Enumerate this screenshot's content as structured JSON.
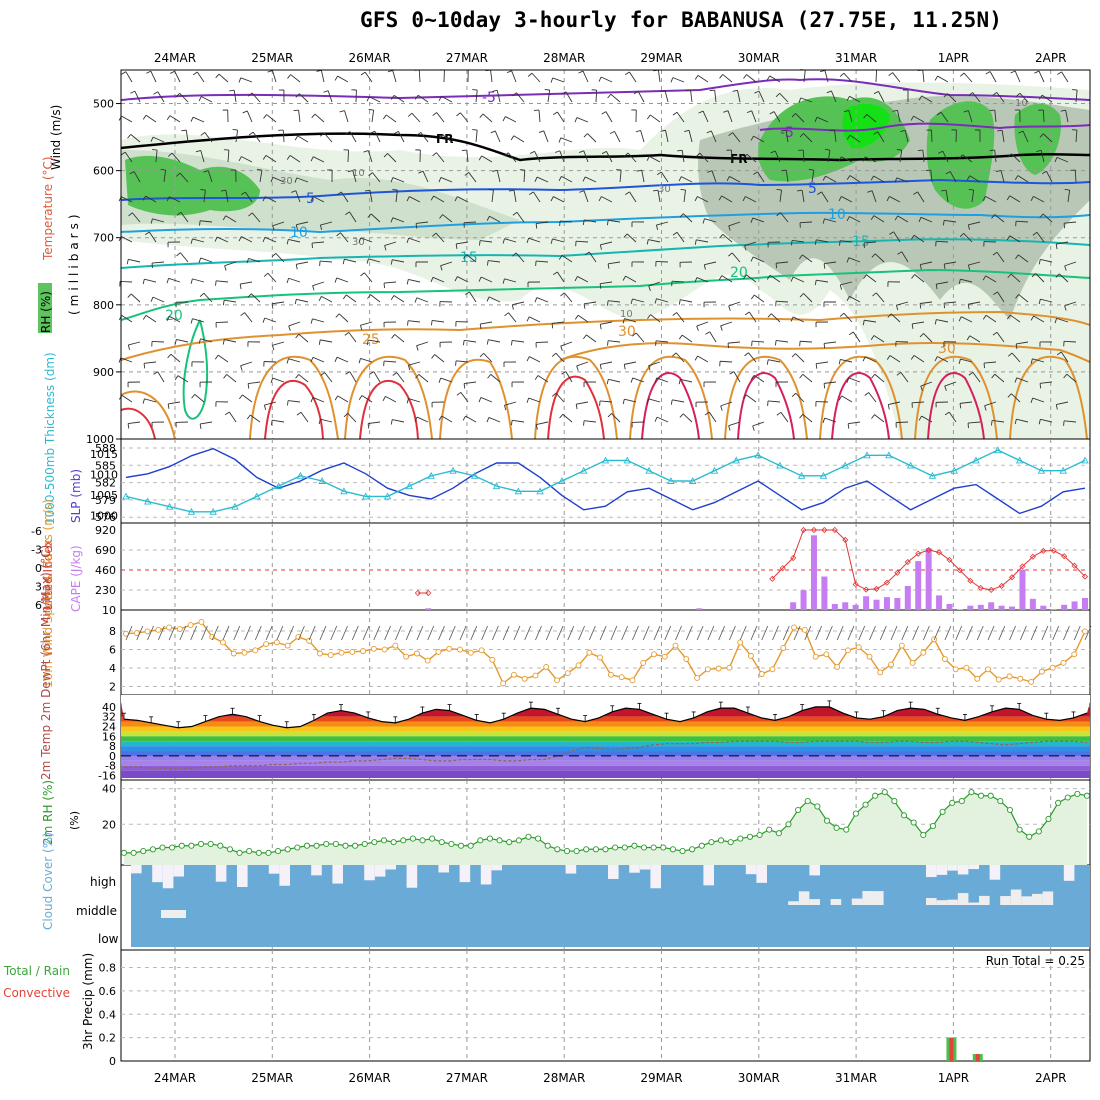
{
  "title": "GFS 0~10day 3-hourly for BABANUSA (27.75E, 11.25N)",
  "dates": [
    "24MAR",
    "25MAR",
    "26MAR",
    "27MAR",
    "28MAR",
    "29MAR",
    "30MAR",
    "31MAR",
    "1APR",
    "2APR"
  ],
  "colors": {
    "rh_green": "#3fbf3f",
    "rh_dark": "#9fa99f",
    "rh_light": "#dcecd9",
    "temp_purple": "#7b2cb8",
    "temp_blue": "#1f55d8",
    "temp_sky": "#1f9fe0",
    "temp_teal": "#18b5b0",
    "temp_green": "#18c27a",
    "temp_orange": "#e0912f",
    "temp_red": "#e0303c",
    "slp": "#1f3fcf",
    "thick": "#2bbbd0",
    "cape": "#c77df2",
    "lifted": "#e03535",
    "wind10": "#e59a2f",
    "rh2m": "#2a9a2a",
    "cloud": "#6aaad6",
    "precip_total": "#4cbf4c",
    "precip_conv": "#e0443a"
  },
  "chart_data": [
    {
      "panel": "upper-air",
      "type": "contour",
      "ylabel_wind": "Wind (m/s)",
      "ylabel_temp": "Temperature (°C)",
      "ylabel_rh": "RH (%)",
      "ylabel_pres": "(millibars)",
      "yticks": [
        "500",
        "600",
        "700",
        "800",
        "900",
        "1000"
      ],
      "ylim": [
        1000,
        450
      ],
      "isotherms": [
        {
          "label": "-5",
          "level": 492,
          "color": "purple"
        },
        {
          "label": "-5",
          "level": 550,
          "color": "purple"
        },
        {
          "label": "FR",
          "level": 575,
          "color": "black"
        },
        {
          "label": "5",
          "level": 625,
          "color": "blue"
        },
        {
          "label": "10",
          "level": 675,
          "color": "sky"
        },
        {
          "label": "15",
          "level": 730,
          "color": "teal"
        },
        {
          "label": "20",
          "level": 800,
          "color": "green"
        },
        {
          "label": "25",
          "level": 850,
          "color": "orange"
        },
        {
          "label": "30",
          "level": 860,
          "color": "orange"
        }
      ],
      "rh_labels": [
        "30",
        "10",
        "30",
        "30",
        "10",
        "10"
      ]
    },
    {
      "panel": "slp-thickness",
      "type": "line",
      "ylabel_left": "1000-500mb Thickness (dm)",
      "ylabel_right": "SLP (mb)",
      "yticks_left": [
        "588",
        "585",
        "582",
        "579",
        "576"
      ],
      "yticks_right": [
        "1015",
        "1010",
        "1005",
        "1000"
      ],
      "series": [
        {
          "name": "SLP (mb)",
          "values": [
            1009,
            1010,
            1012,
            1015,
            1017,
            1014,
            1009,
            1006,
            1008,
            1011,
            1013,
            1010,
            1006,
            1004,
            1003,
            1006,
            1010,
            1013,
            1013,
            1009,
            1004,
            1000,
            1001,
            1005,
            1006,
            1003,
            1000,
            1002,
            1005,
            1008,
            1004,
            1000,
            1002,
            1006,
            1008,
            1004,
            1000,
            1003,
            1006,
            1007,
            1003,
            999,
            1001,
            1005,
            1006
          ]
        },
        {
          "name": "Thickness (dm)",
          "values": [
            579,
            578,
            577,
            576,
            576,
            577,
            579,
            581,
            583,
            582,
            580,
            579,
            579,
            581,
            583,
            584,
            583,
            581,
            580,
            580,
            582,
            584,
            586,
            586,
            584,
            582,
            582,
            584,
            586,
            587,
            585,
            583,
            583,
            585,
            587,
            587,
            585,
            583,
            584,
            586,
            588,
            586,
            584,
            584,
            586
          ]
        }
      ]
    },
    {
      "panel": "cape-lifted",
      "type": "bar",
      "ylabel_left": "Lifted Index",
      "ylabel_right": "CAPE (J/kg)",
      "yticks_left": [
        "-6",
        "-3",
        "0",
        "3",
        "6"
      ],
      "yticks_right": [
        "920",
        "690",
        "460",
        "230",
        "10"
      ],
      "cape": [
        0,
        0,
        0,
        0,
        0,
        0,
        0,
        0,
        0,
        0,
        0,
        0,
        0,
        0,
        0,
        0,
        0,
        0,
        0,
        0,
        0,
        0,
        0,
        0,
        0,
        0,
        0,
        0,
        0,
        20,
        0,
        0,
        0,
        0,
        0,
        0,
        0,
        0,
        0,
        0,
        0,
        0,
        0,
        0,
        0,
        0,
        0,
        0,
        0,
        0,
        0,
        0,
        0,
        0,
        0,
        20,
        0,
        0,
        0,
        0,
        0,
        0,
        0,
        0,
        90,
        230,
        870,
        390,
        70,
        90,
        60,
        160,
        120,
        150,
        140,
        280,
        570,
        720,
        170,
        70,
        5,
        50,
        60,
        90,
        50,
        40,
        470,
        130,
        50,
        10,
        60,
        100,
        140
      ]
    },
    {
      "panel": "wind10m",
      "type": "line",
      "ylabel": "10m Wind Speed & Barbs (m/s)",
      "yticks": [
        "8",
        "6",
        "4",
        "2"
      ],
      "values": [
        7.5,
        7.6,
        7.8,
        8.0,
        8.3,
        8.1,
        8.6,
        9.0,
        7.1,
        6.4,
        5.0,
        5.1,
        5.4,
        6.2,
        6.4,
        6.0,
        7.1,
        6.6,
        5.0,
        4.8,
        5.1,
        5.2,
        5.3,
        5.6,
        5.5,
        6.0,
        4.6,
        5.0,
        4.1,
        5.2,
        5.6,
        5.5,
        5.1,
        5.4,
        4.2,
        1.2,
        2.3,
        1.8,
        2.2,
        3.3,
        1.6,
        2.5,
        3.5,
        5.1,
        4.5,
        2.3,
        2.0,
        1.6,
        3.8,
        4.9,
        4.6,
        6.0,
        4.3,
        1.9,
        3.0,
        3.1,
        3.2,
        6.4,
        4.7,
        2.4,
        3.0,
        5.7,
        8.3,
        8.0,
        4.6,
        4.9,
        3.3,
        5.4,
        5.8,
        4.6,
        2.6,
        3.6,
        6.0,
        3.8,
        5.1,
        6.8,
        4.3,
        3.0,
        3.2,
        1.8,
        3.0,
        1.7,
        2.1,
        1.8,
        1.4,
        2.7,
        3.2,
        3.8,
        4.9,
        7.8
      ]
    },
    {
      "panel": "temp2m",
      "type": "area",
      "ylabel": "2m Temp 2m DewPt (6hr Min/Max) (°C)",
      "yticks": [
        "40",
        "32",
        "24",
        "16",
        "8",
        "0",
        "-8",
        "-16"
      ],
      "temp": [
        30,
        29,
        27,
        25,
        23,
        24,
        28,
        32,
        34,
        32,
        28,
        25,
        23,
        24,
        29,
        35,
        37,
        35,
        31,
        28,
        27,
        30,
        35,
        38,
        37,
        33,
        29,
        27,
        30,
        35,
        39,
        38,
        34,
        30,
        28,
        31,
        36,
        39,
        38,
        34,
        30,
        28,
        31,
        36,
        39,
        39,
        35,
        31,
        29,
        32,
        37,
        40,
        40,
        35,
        31,
        30,
        32,
        37,
        39,
        38,
        34,
        31,
        29,
        32,
        36,
        39,
        38,
        33,
        30,
        29,
        31,
        35
      ],
      "dewpt": [
        -9,
        -9,
        -10,
        -10,
        -10,
        -10,
        -9,
        -9,
        -8,
        -8,
        -8,
        -7,
        -7,
        -6,
        -6,
        -5,
        -5,
        -4,
        -4,
        -3,
        -2,
        -2,
        -3,
        -4,
        -4,
        -3,
        -3,
        -3,
        -4,
        -4,
        -3,
        -3,
        0,
        4,
        7,
        6,
        5,
        6,
        7,
        9,
        10,
        10,
        10,
        11,
        11,
        12,
        12,
        12,
        12,
        11,
        11,
        12,
        12,
        12,
        12,
        11,
        11,
        12,
        12,
        11,
        11,
        12,
        12,
        11,
        10,
        9,
        10,
        11,
        12,
        12,
        12,
        11
      ]
    },
    {
      "panel": "rh2m",
      "type": "area",
      "ylabel": "2m RH (%)",
      "yticks": [
        "40",
        "20"
      ],
      "values": [
        4,
        4,
        5,
        6,
        7,
        7,
        8,
        8,
        9,
        9,
        8,
        6,
        4,
        5,
        4,
        4,
        5,
        6,
        7,
        8,
        8,
        9,
        9,
        8,
        8,
        9,
        10,
        11,
        10,
        11,
        12,
        11,
        12,
        10,
        9,
        8,
        8,
        11,
        12,
        11,
        10,
        11,
        13,
        12,
        8,
        6,
        5,
        5,
        6,
        6,
        6,
        7,
        7,
        8,
        7,
        7,
        7,
        6,
        5,
        6,
        8,
        10,
        11,
        10,
        12,
        13,
        14,
        17,
        15,
        20,
        28,
        33,
        30,
        22,
        18,
        17,
        26,
        31,
        36,
        38,
        33,
        25,
        21,
        14,
        19,
        27,
        32,
        33,
        38,
        36,
        36,
        33,
        28,
        17,
        13,
        16,
        23,
        32,
        35,
        37,
        36
      ]
    },
    {
      "panel": "cloud",
      "type": "heatmap",
      "ylabel": "Cloud Cover (%)",
      "rows": [
        "high",
        "middle",
        "low"
      ]
    },
    {
      "panel": "precip",
      "type": "bar",
      "ylabel": "3hr Precip (mm)",
      "legend": [
        "Total / Rain",
        "Convective"
      ],
      "yticks": [
        "0.8",
        "0.6",
        "0.4",
        "0.2",
        "0"
      ],
      "ylim": [
        0,
        0.95
      ],
      "run_total_label": "Run Total = 0.25",
      "bars": [
        {
          "date_index": 8.0,
          "offset": -0.02,
          "total": 0.2,
          "convective": 0.2
        },
        {
          "date_index": 8.25,
          "offset": 0.0,
          "total": 0.06,
          "convective": 0.06
        }
      ]
    }
  ]
}
